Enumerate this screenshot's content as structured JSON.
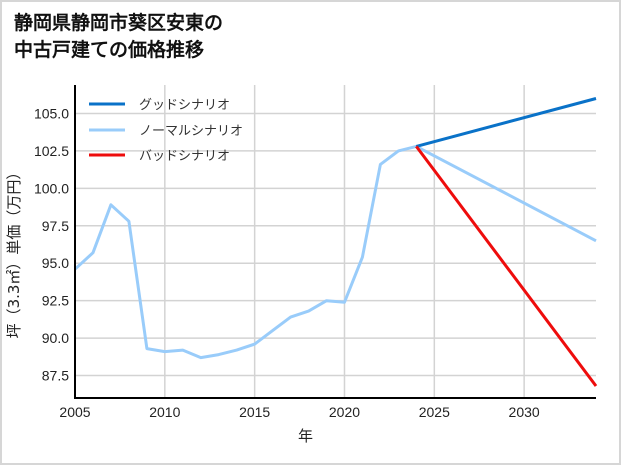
{
  "title": {
    "line1": "静岡県静岡市葵区安東の",
    "line2": "中古戸建ての価格推移"
  },
  "chart_data": {
    "type": "line",
    "title": "静岡県静岡市葵区安東の中古戸建ての価格推移",
    "xlabel": "年",
    "ylabel": "坪（3.3㎡）単価（万円）",
    "xlim": [
      2005,
      2034
    ],
    "ylim": [
      86.0,
      106.9
    ],
    "x_ticks": [
      2005,
      2010,
      2015,
      2020,
      2025,
      2030
    ],
    "y_ticks": [
      87.5,
      90.0,
      92.5,
      95.0,
      97.5,
      100.0,
      102.5,
      105.0
    ],
    "y_tick_labels": [
      "87.5",
      "90.0",
      "92.5",
      "95.0",
      "97.5",
      "100.0",
      "102.5",
      "105.0"
    ],
    "grid": true,
    "legend_position": "upper left",
    "series": [
      {
        "name": "グッドシナリオ",
        "color": "#0a72c8",
        "x": [
          2024,
          2034
        ],
        "values": [
          102.8,
          106.0
        ]
      },
      {
        "name": "ノーマルシナリオ",
        "color": "#99ccfa",
        "x": [
          2005,
          2006,
          2007,
          2008,
          2009,
          2010,
          2011,
          2012,
          2013,
          2014,
          2015,
          2016,
          2017,
          2018,
          2019,
          2020,
          2021,
          2022,
          2023,
          2024,
          2034
        ],
        "values": [
          94.6,
          95.7,
          98.9,
          97.8,
          89.3,
          89.1,
          89.2,
          88.7,
          88.9,
          89.2,
          89.6,
          90.5,
          91.4,
          91.8,
          92.5,
          92.4,
          95.4,
          101.6,
          102.5,
          102.8,
          96.5
        ]
      },
      {
        "name": "バッドシナリオ",
        "color": "#ee0c0c",
        "x": [
          2024,
          2034
        ],
        "values": [
          102.8,
          86.8
        ]
      }
    ]
  }
}
